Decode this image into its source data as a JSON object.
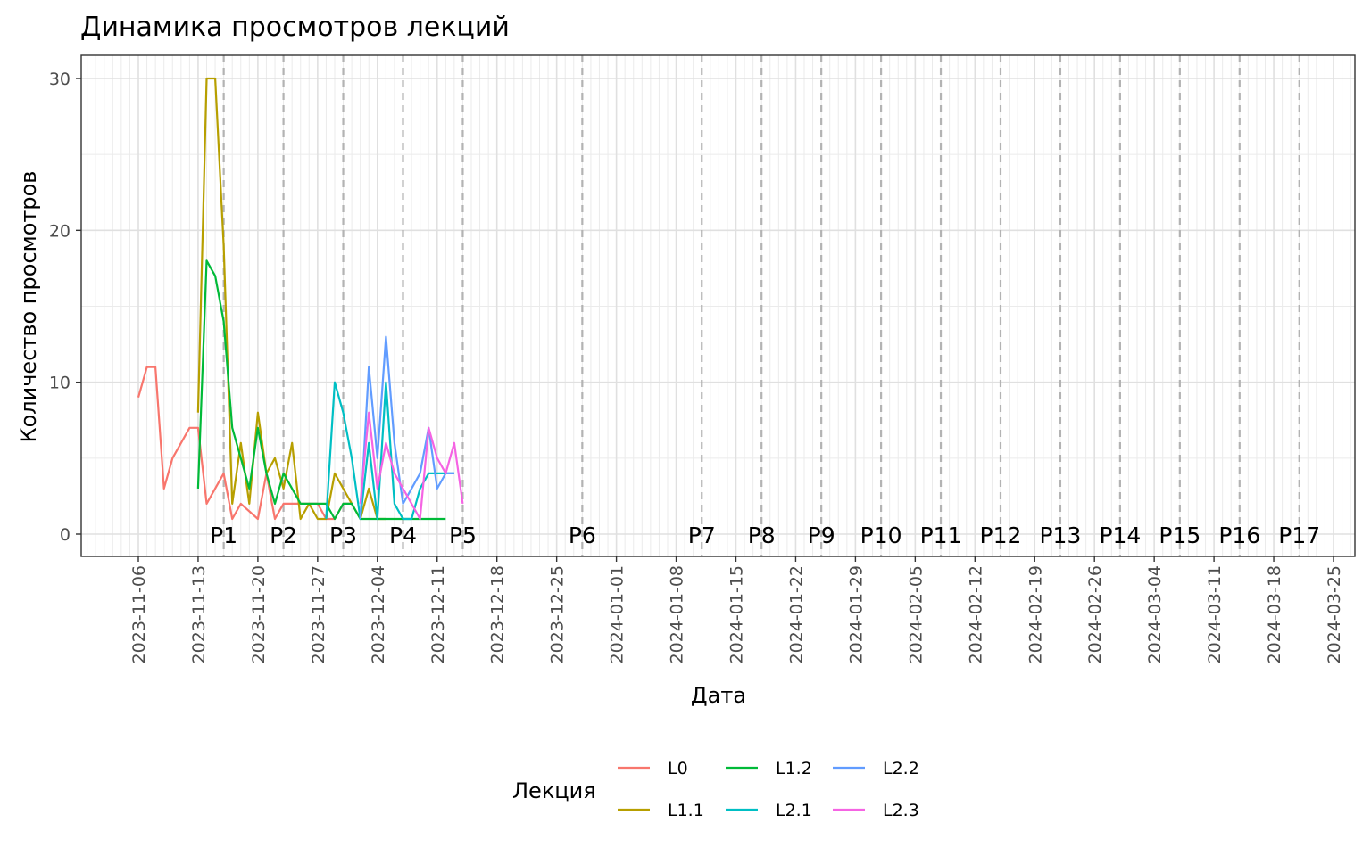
{
  "chart_data": {
    "type": "line",
    "title": "Динамика просмотров лекций",
    "xlabel": "Дата",
    "ylabel": "Количество просмотров",
    "xlim": [
      "2023-11-06",
      "2024-03-25"
    ],
    "ylim": [
      0,
      30
    ],
    "y_ticks": [
      0,
      10,
      20,
      30
    ],
    "x_ticks": [
      "2023-11-06",
      "2023-11-13",
      "2023-11-20",
      "2023-11-27",
      "2023-12-04",
      "2023-12-11",
      "2023-12-18",
      "2023-12-25",
      "2024-01-01",
      "2024-01-08",
      "2024-01-15",
      "2024-01-22",
      "2024-01-29",
      "2024-02-05",
      "2024-02-12",
      "2024-02-19",
      "2024-02-26",
      "2024-03-04",
      "2024-03-11",
      "2024-03-18",
      "2024-03-25"
    ],
    "grid": true,
    "legend": {
      "title": "Лекция",
      "position": "bottom"
    },
    "periods": [
      {
        "label": "P1",
        "date": "2023-11-16"
      },
      {
        "label": "P2",
        "date": "2023-11-23"
      },
      {
        "label": "P3",
        "date": "2023-11-30"
      },
      {
        "label": "P4",
        "date": "2023-12-07"
      },
      {
        "label": "P5",
        "date": "2023-12-14"
      },
      {
        "label": "P6",
        "date": "2023-12-28"
      },
      {
        "label": "P7",
        "date": "2024-01-11"
      },
      {
        "label": "P8",
        "date": "2024-01-18"
      },
      {
        "label": "P9",
        "date": "2024-01-25"
      },
      {
        "label": "P10",
        "date": "2024-02-01"
      },
      {
        "label": "P11",
        "date": "2024-02-08"
      },
      {
        "label": "P12",
        "date": "2024-02-15"
      },
      {
        "label": "P13",
        "date": "2024-02-22"
      },
      {
        "label": "P14",
        "date": "2024-02-29"
      },
      {
        "label": "P15",
        "date": "2024-03-07"
      },
      {
        "label": "P16",
        "date": "2024-03-14"
      },
      {
        "label": "P17",
        "date": "2024-03-21"
      }
    ],
    "series": [
      {
        "name": "L0",
        "color": "#F8766D",
        "x": [
          "2023-11-06",
          "2023-11-07",
          "2023-11-08",
          "2023-11-09",
          "2023-11-10",
          "2023-11-12",
          "2023-11-13",
          "2023-11-14",
          "2023-11-16",
          "2023-11-17",
          "2023-11-18",
          "2023-11-20",
          "2023-11-21",
          "2023-11-22",
          "2023-11-23",
          "2023-11-24",
          "2023-11-25",
          "2023-11-26",
          "2023-11-27",
          "2023-11-28",
          "2023-11-29",
          "2023-11-30",
          "2023-12-01"
        ],
        "y": [
          9,
          11,
          11,
          3,
          5,
          7,
          7,
          2,
          4,
          1,
          2,
          1,
          4,
          1,
          2,
          2,
          2,
          2,
          2,
          1,
          1,
          2,
          2
        ]
      },
      {
        "name": "L1.1",
        "color": "#B79F00",
        "x": [
          "2023-11-13",
          "2023-11-14",
          "2023-11-15",
          "2023-11-16",
          "2023-11-17",
          "2023-11-18",
          "2023-11-19",
          "2023-11-20",
          "2023-11-21",
          "2023-11-22",
          "2023-11-23",
          "2023-11-24",
          "2023-11-25",
          "2023-11-26",
          "2023-11-27",
          "2023-11-28",
          "2023-11-29",
          "2023-11-30",
          "2023-12-01",
          "2023-12-02",
          "2023-12-03",
          "2023-12-04",
          "2023-12-05"
        ],
        "y": [
          8,
          30,
          30,
          19,
          2,
          6,
          2,
          8,
          4,
          5,
          3,
          6,
          1,
          2,
          1,
          1,
          4,
          3,
          2,
          1,
          3,
          1,
          1
        ]
      },
      {
        "name": "L1.2",
        "color": "#00BA38",
        "x": [
          "2023-11-13",
          "2023-11-14",
          "2023-11-15",
          "2023-11-16",
          "2023-11-17",
          "2023-11-18",
          "2023-11-19",
          "2023-11-20",
          "2023-11-21",
          "2023-11-22",
          "2023-11-23",
          "2023-11-24",
          "2023-11-25",
          "2023-11-26",
          "2023-11-27",
          "2023-11-28",
          "2023-11-29",
          "2023-11-30",
          "2023-12-01",
          "2023-12-02",
          "2023-12-03",
          "2023-12-04",
          "2023-12-05",
          "2023-12-06",
          "2023-12-07",
          "2023-12-08",
          "2023-12-09",
          "2023-12-10",
          "2023-12-11",
          "2023-12-12"
        ],
        "y": [
          3,
          18,
          17,
          14,
          7,
          5,
          3,
          7,
          4,
          2,
          4,
          3,
          2,
          2,
          2,
          2,
          1,
          2,
          2,
          1,
          1,
          1,
          1,
          1,
          1,
          1,
          1,
          1,
          1,
          1
        ]
      },
      {
        "name": "L2.1",
        "color": "#00BFC4",
        "x": [
          "2023-11-28",
          "2023-11-29",
          "2023-11-30",
          "2023-12-01",
          "2023-12-02",
          "2023-12-03",
          "2023-12-04",
          "2023-12-05",
          "2023-12-06",
          "2023-12-07",
          "2023-12-08",
          "2023-12-09",
          "2023-12-10",
          "2023-12-11",
          "2023-12-12",
          "2023-12-13"
        ],
        "y": [
          1,
          10,
          8,
          5,
          1,
          6,
          1,
          10,
          2,
          1,
          1,
          3,
          4,
          4,
          4,
          4
        ]
      },
      {
        "name": "L2.2",
        "color": "#619CFF",
        "x": [
          "2023-12-02",
          "2023-12-03",
          "2023-12-04",
          "2023-12-05",
          "2023-12-06",
          "2023-12-07",
          "2023-12-08",
          "2023-12-09",
          "2023-12-10",
          "2023-12-11",
          "2023-12-12",
          "2023-12-13"
        ],
        "y": [
          1,
          11,
          5,
          13,
          6,
          2,
          3,
          4,
          7,
          3,
          4,
          4
        ]
      },
      {
        "name": "L2.3",
        "color": "#F564E3",
        "x": [
          "2023-12-02",
          "2023-12-03",
          "2023-12-04",
          "2023-12-05",
          "2023-12-06",
          "2023-12-07",
          "2023-12-08",
          "2023-12-09",
          "2023-12-10",
          "2023-12-11",
          "2023-12-12",
          "2023-12-13",
          "2023-12-14"
        ],
        "y": [
          2,
          8,
          3,
          6,
          4,
          3,
          2,
          1,
          7,
          5,
          4,
          6,
          2
        ]
      }
    ]
  }
}
